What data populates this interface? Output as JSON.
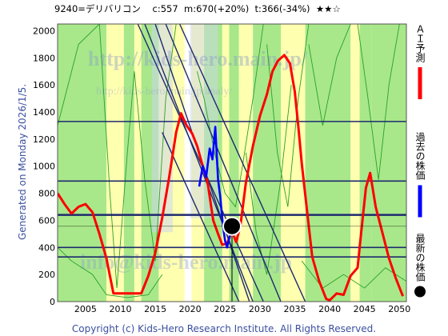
{
  "header": {
    "title": "9240=デリバリコン",
    "current": "c:557",
    "mid": "m:670(+20%)",
    "target": "t:366(-34%)",
    "rating": "★★☆"
  },
  "side_generated": "Generated on Monday 2026/1/5.",
  "footer": "Copyright (c) Kids-Hero Research Institute. All Rights Reserved.",
  "watermark": {
    "url": "http://kids-hero.main.jp/",
    "url_small": "http://kids-hero.main.jp/analy/",
    "mail": "info@kids-hero.main.jp"
  },
  "colors": {
    "ai_forecast": "#ff0000",
    "past_price": "#0000ff",
    "latest": "#000000",
    "green_band": "#a8e88a",
    "yellow_band": "#ffffb0",
    "grid": "#1e2a6e"
  },
  "chart_data": {
    "type": "line",
    "xlim": [
      2001,
      2051
    ],
    "ylim": [
      0,
      2050
    ],
    "x_ticks": [
      "2005",
      "2010",
      "2015",
      "2020",
      "2025",
      "2030",
      "2035",
      "2040",
      "2045",
      "2050"
    ],
    "y_ticks": [
      "0",
      "200",
      "400",
      "600",
      "800",
      "1000",
      "1200",
      "1400",
      "1600",
      "1800",
      "2000"
    ],
    "horizontal_levels": [
      330,
      400,
      640,
      890,
      1330
    ],
    "latest_point": {
      "x": 2026.0,
      "y": 557
    },
    "legend": [
      {
        "label": "ＡＩ予測",
        "color": "#ff0000"
      },
      {
        "label": "過去の株価",
        "color": "#0000ff"
      },
      {
        "label": "最新の株価",
        "color": "#000000",
        "marker": "circle"
      }
    ],
    "series": [
      {
        "name": "ＡＩ予測",
        "x": [
          2001,
          2002,
          2003,
          2004,
          2005,
          2006,
          2007,
          2008,
          2009,
          2013,
          2014,
          2015,
          2016,
          2017,
          2018,
          2018.7,
          2019.5,
          2020.3,
          2021,
          2021.7,
          2022.5,
          2023.3,
          2024,
          2024.6,
          2025.3,
          2026,
          2026.6,
          2027.2,
          2028,
          2029,
          2030,
          2031,
          2031.8,
          2032.6,
          2033.5,
          2034.3,
          2035,
          2035.5,
          2036,
          2036.8,
          2037.5,
          2038.5,
          2039.5,
          2040,
          2041,
          2042,
          2043,
          2044,
          2044.5,
          2045.2,
          2045.8,
          2046.6,
          2047.5,
          2048.5,
          2049.5,
          2050.5
        ],
        "y": [
          800,
          720,
          650,
          700,
          720,
          660,
          500,
          320,
          60,
          60,
          190,
          360,
          620,
          920,
          1250,
          1390,
          1300,
          1240,
          1150,
          1020,
          880,
          600,
          500,
          420,
          430,
          520,
          440,
          560,
          880,
          1150,
          1370,
          1530,
          1700,
          1780,
          1820,
          1760,
          1550,
          1300,
          1020,
          650,
          330,
          150,
          20,
          10,
          60,
          50,
          190,
          250,
          500,
          840,
          950,
          700,
          520,
          320,
          170,
          40
        ]
      },
      {
        "name": "過去の株価",
        "x": [
          2021.3,
          2021.8,
          2022.3,
          2022.8,
          2023.2,
          2023.6,
          2024,
          2024.3,
          2024.7,
          2025,
          2025.3,
          2025.6,
          2026
        ],
        "y": [
          850,
          1000,
          920,
          1130,
          1050,
          1290,
          900,
          780,
          560,
          450,
          400,
          470,
          557
        ]
      }
    ]
  }
}
